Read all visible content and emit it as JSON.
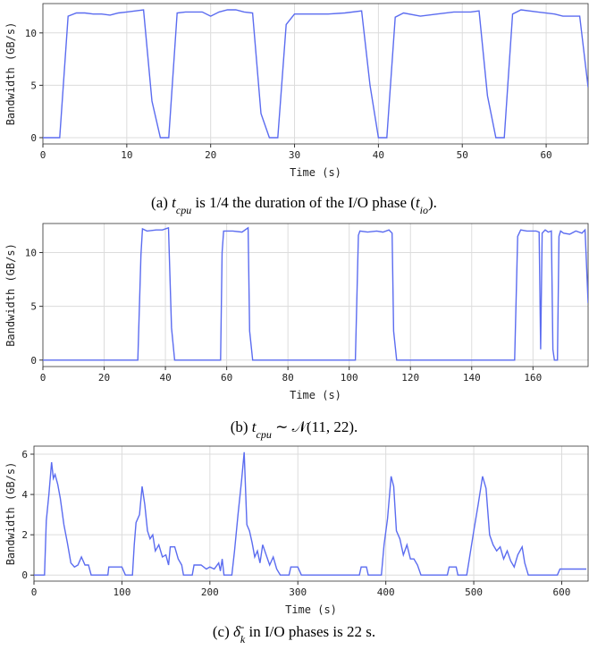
{
  "chart_data": [
    {
      "type": "line",
      "x_label": "Time (s)",
      "y_label": "Bandwidth (GB/s)",
      "color": "#5b6cf0",
      "grid": true,
      "caption": [
        {
          "text": "(a) "
        },
        {
          "text": "t",
          "style": "italic"
        },
        {
          "text": "cpu",
          "style": "sub"
        },
        {
          "text": " is 1/4 the duration of the I/O phase ("
        },
        {
          "text": "t",
          "style": "italic"
        },
        {
          "text": "io",
          "style": "sub"
        },
        {
          "text": ")."
        }
      ],
      "xlim": [
        0,
        65
      ],
      "ylim": [
        -0.6,
        12.8
      ],
      "xticks": [
        0,
        10,
        20,
        30,
        40,
        50,
        60
      ],
      "yticks": [
        0,
        5,
        10
      ],
      "x": [
        0,
        2,
        3,
        4,
        5,
        6,
        7,
        8,
        9,
        10,
        12,
        13,
        14,
        15,
        16,
        17,
        19,
        20,
        21,
        22,
        23,
        24,
        25,
        26,
        27,
        28,
        29,
        30,
        32,
        34,
        36,
        38,
        39,
        40,
        41,
        42,
        43,
        45,
        47,
        49,
        51,
        52,
        53,
        54,
        55,
        56,
        57,
        59,
        61,
        62,
        63,
        64,
        65
      ],
      "values": [
        0,
        0,
        11.6,
        11.9,
        11.9,
        11.8,
        11.8,
        11.7,
        11.9,
        12.0,
        12.2,
        3.5,
        0,
        0,
        11.9,
        12.0,
        12.0,
        11.6,
        12.0,
        12.2,
        12.2,
        12.0,
        11.9,
        2.3,
        0,
        0,
        10.8,
        11.8,
        11.8,
        11.8,
        11.9,
        12.1,
        5,
        0,
        0,
        11.5,
        11.9,
        11.6,
        11.8,
        12.0,
        12.0,
        12.1,
        4,
        0,
        0,
        11.8,
        12.2,
        12.0,
        11.8,
        11.6,
        11.6,
        11.6,
        4.8
      ]
    },
    {
      "type": "line",
      "x_label": "Time (s)",
      "y_label": "Bandwidth (GB/s)",
      "color": "#5b6cf0",
      "grid": true,
      "caption": [
        {
          "text": "(b) "
        },
        {
          "text": "t",
          "style": "italic"
        },
        {
          "text": "cpu",
          "style": "sub"
        },
        {
          "text": " ∼ 𝒩(11, 22)."
        }
      ],
      "xlim": [
        0,
        178
      ],
      "ylim": [
        -0.6,
        12.7
      ],
      "xticks": [
        0,
        20,
        40,
        60,
        80,
        100,
        120,
        140,
        160
      ],
      "yticks": [
        0,
        5,
        10
      ],
      "x": [
        0,
        31,
        32,
        32.5,
        34,
        37,
        39,
        41,
        42,
        43,
        58,
        58.5,
        59,
        62,
        65,
        67,
        67.5,
        68.5,
        102,
        103,
        103.5,
        106,
        109,
        111,
        113,
        114,
        114.5,
        115.5,
        154,
        155,
        156,
        158,
        160,
        161,
        162,
        162.5,
        163,
        164,
        165,
        166,
        166.5,
        167,
        168,
        168.5,
        169,
        170,
        172,
        174,
        176,
        177,
        178
      ],
      "values": [
        0,
        0,
        9.8,
        12.2,
        12.0,
        12.1,
        12.1,
        12.3,
        3,
        0,
        0,
        10,
        12,
        12,
        11.9,
        12.3,
        2.7,
        0,
        0,
        11.6,
        12,
        11.9,
        12,
        11.9,
        12.1,
        11.8,
        2.7,
        0,
        0,
        11.5,
        12.1,
        12,
        12,
        12,
        11.9,
        1,
        11.8,
        12.1,
        11.9,
        12,
        1,
        0,
        0,
        11.5,
        12,
        11.8,
        11.7,
        12.0,
        11.8,
        12.1,
        5.3
      ]
    },
    {
      "type": "line",
      "x_label": "Time (s)",
      "y_label": "Bandwidth (GB/s)",
      "color": "#5b6cf0",
      "grid": true,
      "caption": [
        {
          "text": "(c) "
        },
        {
          "text": "δ̄",
          "style": "italic"
        },
        {
          "text": "k",
          "style": "sub"
        },
        {
          "text": " in I/O phases is 22 s."
        }
      ],
      "xlim": [
        0,
        630
      ],
      "ylim": [
        -0.3,
        6.4
      ],
      "xticks": [
        0,
        100,
        200,
        300,
        400,
        500,
        600
      ],
      "yticks": [
        0,
        2,
        4,
        6
      ],
      "x": [
        0,
        12,
        14,
        17,
        20,
        22,
        24,
        27,
        30,
        34,
        38,
        42,
        46,
        50,
        54,
        58,
        62,
        65,
        84,
        85,
        100,
        104,
        112,
        114,
        116,
        120,
        123,
        126,
        129,
        132,
        135,
        138,
        142,
        146,
        150,
        153,
        155,
        160,
        164,
        168,
        170,
        180,
        182,
        190,
        196,
        200,
        205,
        210,
        212,
        214,
        216,
        225,
        228,
        232,
        236,
        239,
        242,
        245,
        248,
        251,
        254,
        257,
        260,
        264,
        268,
        272,
        276,
        280,
        290,
        292,
        300,
        304,
        370,
        372,
        378,
        380,
        395,
        398,
        402,
        406,
        409,
        412,
        416,
        420,
        424,
        428,
        432,
        436,
        440,
        470,
        472,
        480,
        482,
        492,
        495,
        500,
        505,
        510,
        514,
        518,
        522,
        526,
        530,
        534,
        538,
        542,
        546,
        550,
        555,
        558,
        562,
        595,
        598,
        628
      ],
      "values": [
        0,
        0,
        2.7,
        4,
        5.6,
        4.8,
        5,
        4.5,
        3.8,
        2.5,
        1.6,
        0.6,
        0.4,
        0.5,
        0.9,
        0.5,
        0.5,
        0,
        0,
        0.4,
        0.4,
        0,
        0,
        1.5,
        2.6,
        3,
        4.4,
        3.5,
        2.2,
        1.8,
        2,
        1.2,
        1.5,
        0.9,
        1,
        0.5,
        1.4,
        1.4,
        0.8,
        0.5,
        0,
        0,
        0.5,
        0.5,
        0.3,
        0.4,
        0.3,
        0.6,
        0.2,
        0.8,
        0,
        0,
        1.2,
        3,
        4.7,
        6.1,
        2.5,
        2.2,
        1.6,
        0.9,
        1.2,
        0.6,
        1.5,
        1,
        0.5,
        0.9,
        0.3,
        0,
        0,
        0.4,
        0.4,
        0,
        0,
        0.4,
        0.4,
        0,
        0,
        1.5,
        2.8,
        4.9,
        4.4,
        2.2,
        1.8,
        1,
        1.5,
        0.8,
        0.8,
        0.5,
        0,
        0,
        0.4,
        0.4,
        0,
        0,
        0.8,
        2.2,
        3.5,
        4.9,
        4.3,
        2,
        1.5,
        1.2,
        1.4,
        0.8,
        1.2,
        0.7,
        0.4,
        1,
        1.4,
        0.6,
        0,
        0,
        0.3,
        0.3
      ]
    }
  ]
}
